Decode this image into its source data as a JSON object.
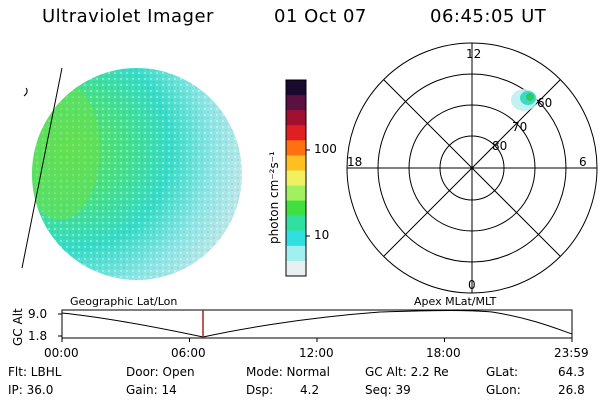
{
  "header": {
    "instrument": "Ultraviolet Imager",
    "date": "01 Oct 07",
    "time": "06:45:05 UT"
  },
  "colorbar": {
    "unit_label": "photon cm⁻²s⁻¹",
    "ticks": [
      "100",
      "10"
    ],
    "colors": [
      "#1a0a2e",
      "#5a1040",
      "#a01030",
      "#e02020",
      "#ff7010",
      "#ffc020",
      "#f0f060",
      "#a0f060",
      "#40e040",
      "#30e0a0",
      "#30e0e0",
      "#a0f0f0",
      "#e8f0f0"
    ]
  },
  "polar_plot": {
    "mlt_labels": {
      "top": "12",
      "left": "18",
      "right": "6",
      "bottom": "0"
    },
    "lat_labels": [
      "80",
      "70",
      "60"
    ]
  },
  "timeline": {
    "left_label": "Geographic Lat/Lon",
    "right_label": "Apex MLat/MLT",
    "y_axis_label": "GC Alt",
    "y_ticks": [
      "9.0",
      "1.8"
    ],
    "x_ticks": [
      "00:00",
      "06:00",
      "12:00",
      "18:00",
      "23:59"
    ],
    "current_marker_time": "06:45"
  },
  "info": {
    "filter": "Flt: LBHL",
    "ip": "IP: 36.0",
    "door": "Door: Open",
    "gain": "Gain: 14",
    "mode": "Mode: Normal",
    "dsp_label": "Dsp:",
    "dsp_value": "4.2",
    "gc_alt": "GC Alt: 2.2 Re",
    "seq": "Seq: 39",
    "glat_label": "GLat:",
    "glat_value": "64.3",
    "glon_label": "GLon:",
    "glon_value": "26.8"
  }
}
